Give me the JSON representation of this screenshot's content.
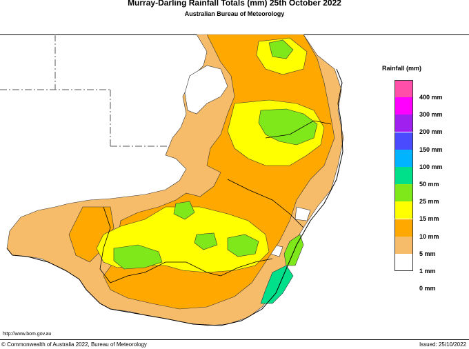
{
  "header": {
    "title": "Murray-Darling Rainfall Totals (mm)     25th October 2022",
    "subtitle": "Australian Bureau of Meteorology"
  },
  "legend": {
    "title": "Rainfall (mm)",
    "items": [
      {
        "label": "400 mm",
        "color": "#ff4fa8"
      },
      {
        "label": "300 mm",
        "color": "#ff00ff"
      },
      {
        "label": "200 mm",
        "color": "#a020f0"
      },
      {
        "label": "150 mm",
        "color": "#4a4aff"
      },
      {
        "label": "100 mm",
        "color": "#00b4ff"
      },
      {
        "label": "50 mm",
        "color": "#00e08a"
      },
      {
        "label": "25 mm",
        "color": "#7ee81a"
      },
      {
        "label": "15 mm",
        "color": "#ffff00"
      },
      {
        "label": "10 mm",
        "color": "#ffa800"
      },
      {
        "label": "5 mm",
        "color": "#f7bc6a"
      },
      {
        "label": "1 mm",
        "color": "#ffffff"
      },
      {
        "label": "0 mm",
        "color": ""
      }
    ]
  },
  "footer": {
    "url": "http://www.bom.gov.au",
    "copyright": "© Commonwealth of Australia 2022, Bureau of Meteorology",
    "issued": "Issued: 25/10/2022"
  }
}
